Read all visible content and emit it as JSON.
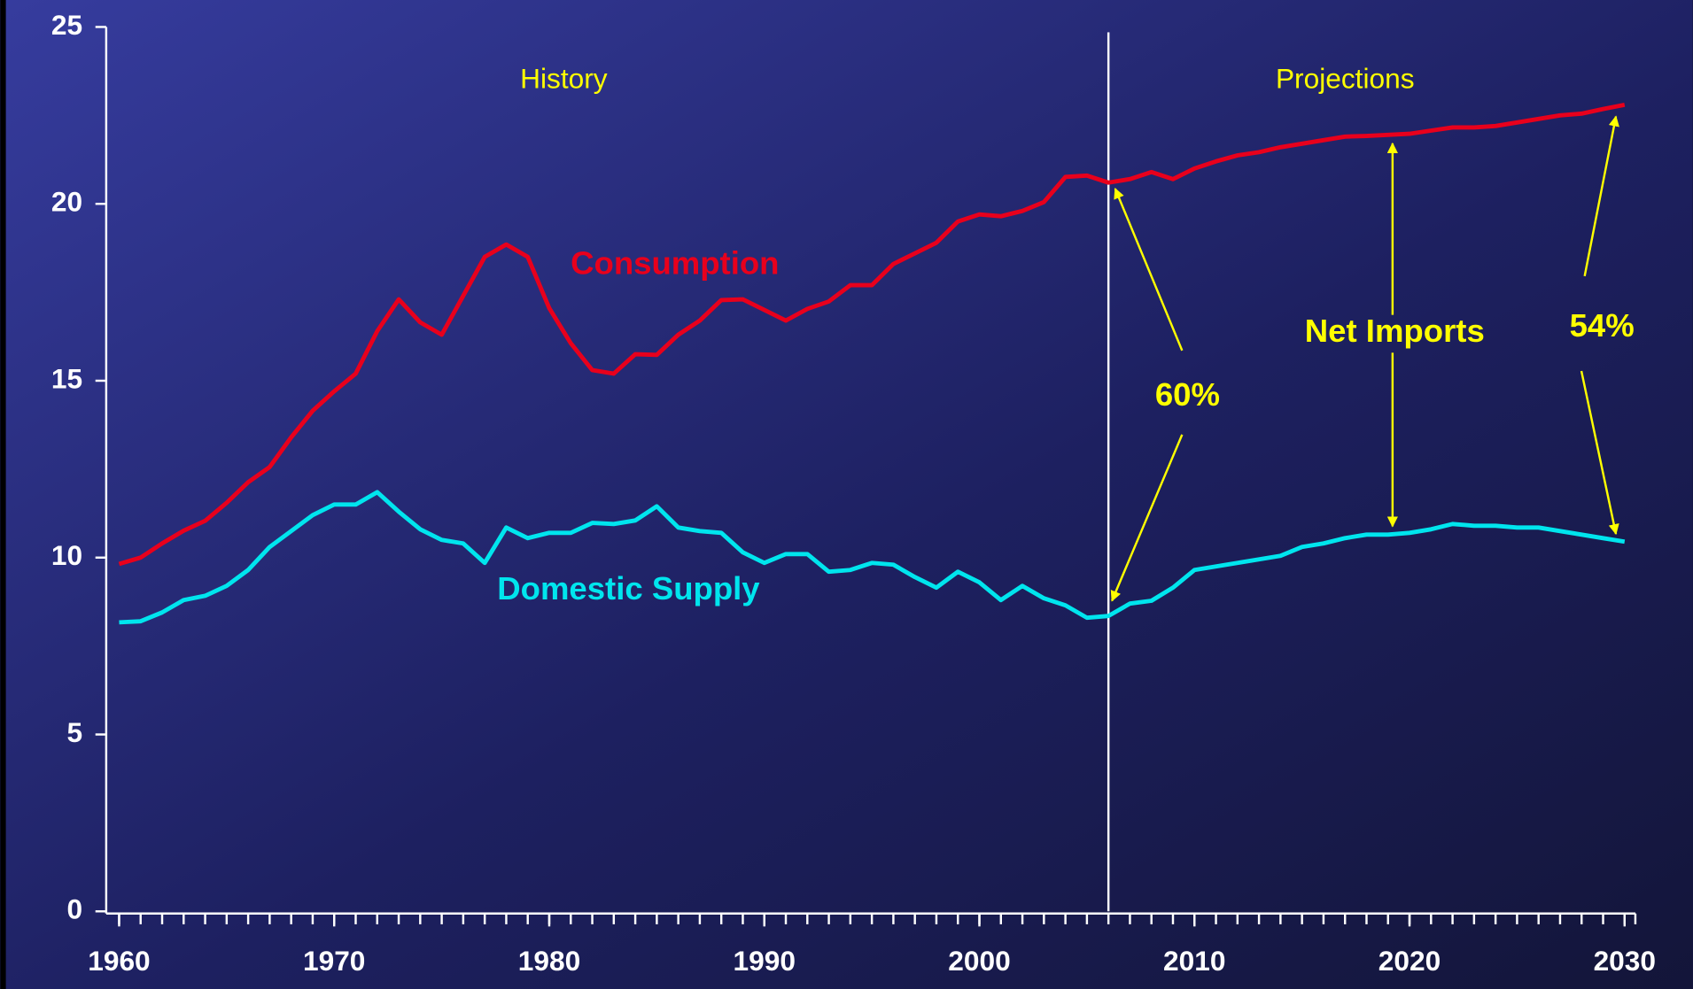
{
  "chart_data": {
    "type": "line",
    "x": [
      1960,
      1961,
      1962,
      1963,
      1964,
      1965,
      1966,
      1967,
      1968,
      1969,
      1970,
      1971,
      1972,
      1973,
      1974,
      1975,
      1976,
      1977,
      1978,
      1979,
      1980,
      1981,
      1982,
      1983,
      1984,
      1985,
      1986,
      1987,
      1988,
      1989,
      1990,
      1991,
      1992,
      1993,
      1994,
      1995,
      1996,
      1997,
      1998,
      1999,
      2000,
      2001,
      2002,
      2003,
      2004,
      2005,
      2006,
      2007,
      2008,
      2009,
      2010,
      2011,
      2012,
      2013,
      2014,
      2015,
      2016,
      2017,
      2018,
      2019,
      2020,
      2021,
      2022,
      2023,
      2024,
      2025,
      2026,
      2027,
      2028,
      2029,
      2030
    ],
    "series": [
      {
        "name": "Consumption",
        "color": "#e8001c",
        "values": [
          9.82,
          10.0,
          10.4,
          10.76,
          11.04,
          11.55,
          12.13,
          12.56,
          13.4,
          14.15,
          14.7,
          15.2,
          16.4,
          17.3,
          16.65,
          16.3,
          17.4,
          18.5,
          18.85,
          18.5,
          17.05,
          16.06,
          15.3,
          15.2,
          15.75,
          15.73,
          16.3,
          16.7,
          17.28,
          17.3,
          17.0,
          16.7,
          17.03,
          17.24,
          17.7,
          17.7,
          18.3,
          18.6,
          18.9,
          19.5,
          19.7,
          19.65,
          19.8,
          20.05,
          20.76,
          20.8,
          20.6,
          20.7,
          20.9,
          20.7,
          21.0,
          21.2,
          21.37,
          21.46,
          21.6,
          21.7,
          21.8,
          21.9,
          21.92,
          21.95,
          21.98,
          22.07,
          22.16,
          22.16,
          22.2,
          22.3,
          22.4,
          22.5,
          22.55,
          22.68,
          22.8
        ]
      },
      {
        "name": "Domestic Supply",
        "color": "#00e5ee",
        "values": [
          8.17,
          8.2,
          8.45,
          8.8,
          8.92,
          9.2,
          9.65,
          10.3,
          10.75,
          11.2,
          11.5,
          11.5,
          11.85,
          11.3,
          10.8,
          10.5,
          10.4,
          9.85,
          10.85,
          10.55,
          10.7,
          10.7,
          10.98,
          10.95,
          11.05,
          11.45,
          10.85,
          10.75,
          10.7,
          10.15,
          9.85,
          10.1,
          10.1,
          9.6,
          9.65,
          9.85,
          9.8,
          9.45,
          9.15,
          9.6,
          9.3,
          8.8,
          9.2,
          8.85,
          8.65,
          8.3,
          8.35,
          8.7,
          8.78,
          9.15,
          9.65,
          9.75,
          9.85,
          9.95,
          10.05,
          10.3,
          10.4,
          10.55,
          10.65,
          10.65,
          10.7,
          10.8,
          10.95,
          10.9,
          10.9,
          10.85,
          10.85,
          10.75,
          10.65,
          10.55,
          10.45
        ]
      }
    ],
    "xlim": [
      1959.5,
      2030.5
    ],
    "xticks": [
      1960,
      1970,
      1980,
      1990,
      2000,
      2010,
      2020,
      2030
    ],
    "ylim": [
      0,
      25
    ],
    "yticks": [
      0,
      5,
      10,
      15,
      20,
      25
    ],
    "projection_start": 2006,
    "annotations": [
      "History",
      "Projections",
      "Net Imports",
      "60%",
      "54%"
    ]
  }
}
